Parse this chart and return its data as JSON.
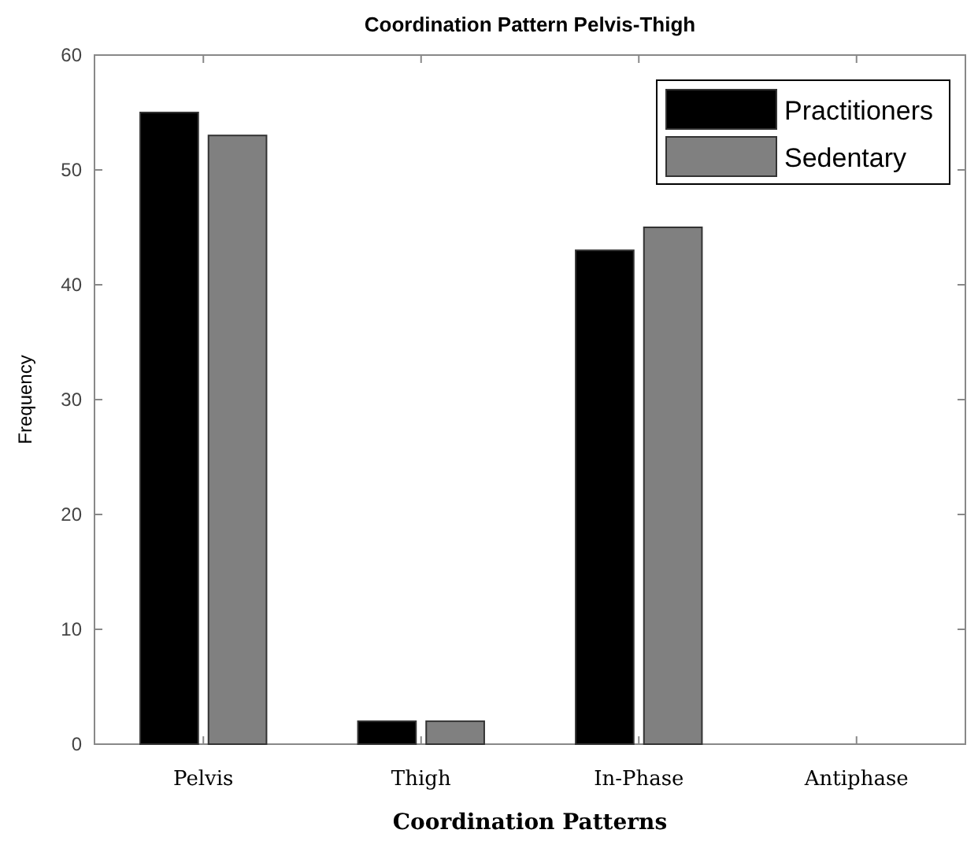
{
  "chart_data": {
    "type": "bar",
    "title": "Coordination Pattern Pelvis-Thigh",
    "xlabel": "Coordination Patterns",
    "ylabel": "Frequency",
    "categories": [
      "Pelvis",
      "Thigh",
      "In-Phase",
      "Antiphase"
    ],
    "series": [
      {
        "name": "Practitioners",
        "color": "#000000",
        "values": [
          55,
          2,
          43,
          0
        ]
      },
      {
        "name": "Sedentary",
        "color": "#808080",
        "values": [
          53,
          2,
          45,
          0
        ]
      }
    ],
    "ylim": [
      0,
      60
    ],
    "yticks": [
      0,
      10,
      20,
      30,
      40,
      50,
      60
    ],
    "legend": "top right"
  }
}
